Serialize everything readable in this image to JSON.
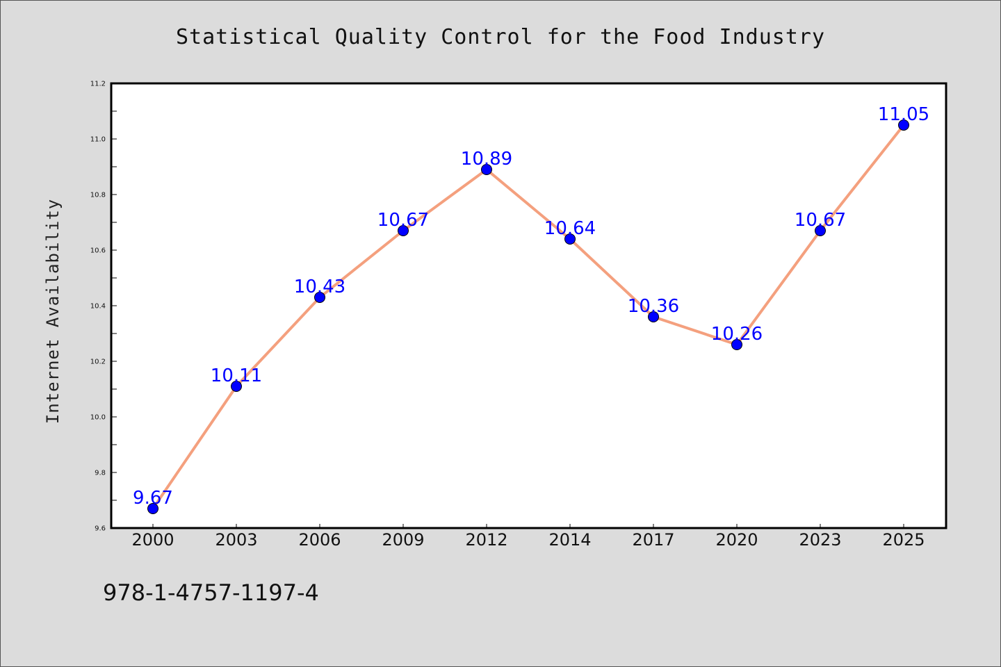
{
  "chart_data": {
    "type": "line",
    "title": "Statistical Quality Control for the Food Industry",
    "xlabel": "",
    "ylabel": "Internet Availability",
    "categories": [
      "2000",
      "2003",
      "2006",
      "2009",
      "2012",
      "2014",
      "2017",
      "2020",
      "2023",
      "2025"
    ],
    "series": [
      {
        "values": [
          9.67,
          10.11,
          10.43,
          10.67,
          10.89,
          10.64,
          10.36,
          10.26,
          10.67,
          11.05
        ],
        "labels": [
          "9.67",
          "10.11",
          "10.43",
          "10.67",
          "10.89",
          "10.64",
          "10.36",
          "10.26",
          "10.67",
          "11.05"
        ],
        "line_color": "#f4a07e",
        "marker_color": "#0000ff"
      }
    ],
    "ylim": [
      9.6,
      11.2
    ],
    "yticks": [
      "9.6",
      "9.8",
      "10.0",
      "10.2",
      "10.4",
      "10.6",
      "10.8",
      "11.0",
      "11.2"
    ],
    "grid": false,
    "legend": "none"
  },
  "footer": {
    "isbn": "978-1-4757-1197-4"
  },
  "colors": {
    "background": "#dcdcdc",
    "plot_area": "#ffffff",
    "data_label": "#0000ff"
  }
}
